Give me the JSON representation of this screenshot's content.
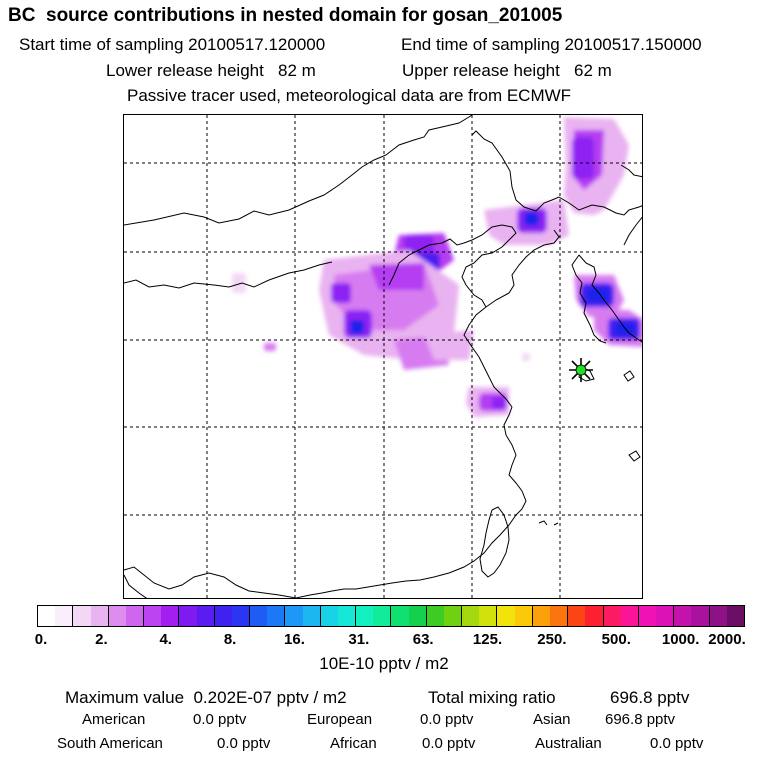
{
  "header": {
    "title": "BC  source contributions in nested domain for gosan_201005",
    "start_label": "Start time of sampling 20100517.120000",
    "end_label": "End time of sampling 20100517.150000",
    "lower_label": "Lower release height   82 m",
    "upper_label": "Upper release height   62 m",
    "info": "Passive tracer used, meteorological data are from ECMWF"
  },
  "map": {
    "gridlines": "dashed",
    "receptor_marker": "asterisk-star-icon",
    "plume_colors": [
      "#f3d8f5",
      "#e9b2f0",
      "#d77cf0",
      "#b53cf2",
      "#8d21f2",
      "#4f1ff0",
      "#1a22ec"
    ]
  },
  "colorbar": {
    "colors": [
      "#ffffff",
      "#fbeefc",
      "#f3d8f5",
      "#e9b2f0",
      "#df8cef",
      "#cf66ef",
      "#bb44f0",
      "#a21ff0",
      "#7f1bf0",
      "#5a1cf0",
      "#3f21f2",
      "#2a36f2",
      "#1f5cf4",
      "#1d78f6",
      "#1e98f6",
      "#1cb6f0",
      "#19d2e6",
      "#16e8d8",
      "#12f0c0",
      "#10ec98",
      "#10e070",
      "#15d04c",
      "#3ccc22",
      "#70d012",
      "#a4d80e",
      "#d2e00c",
      "#f2e40a",
      "#fcc80a",
      "#fca00c",
      "#fc7410",
      "#fc4414",
      "#fc2030",
      "#fc1a64",
      "#fc1498",
      "#f012b4",
      "#dc12b4",
      "#c412ac",
      "#a8129c",
      "#8c1286",
      "#6a0e66"
    ],
    "tick_labels": [
      "0.",
      "2.",
      "4.",
      "8.",
      "16.",
      "31.",
      "63.",
      "125.",
      "250.",
      "500.",
      "1000.",
      "2000."
    ],
    "unit": "10E-10 pptv / m2"
  },
  "stats": {
    "max_value": "Maximum value  0.202E-07 pptv / m2",
    "total": "Total mixing ratio",
    "total_value": "696.8 pptv",
    "regions": [
      {
        "name": "American",
        "value": "0.0 pptv"
      },
      {
        "name": "European",
        "value": "0.0 pptv"
      },
      {
        "name": "Asian",
        "value": "696.8 pptv"
      },
      {
        "name": "South American",
        "value": "0.0 pptv"
      },
      {
        "name": "African",
        "value": "0.0 pptv"
      },
      {
        "name": "Australian",
        "value": "0.0 pptv"
      }
    ]
  }
}
